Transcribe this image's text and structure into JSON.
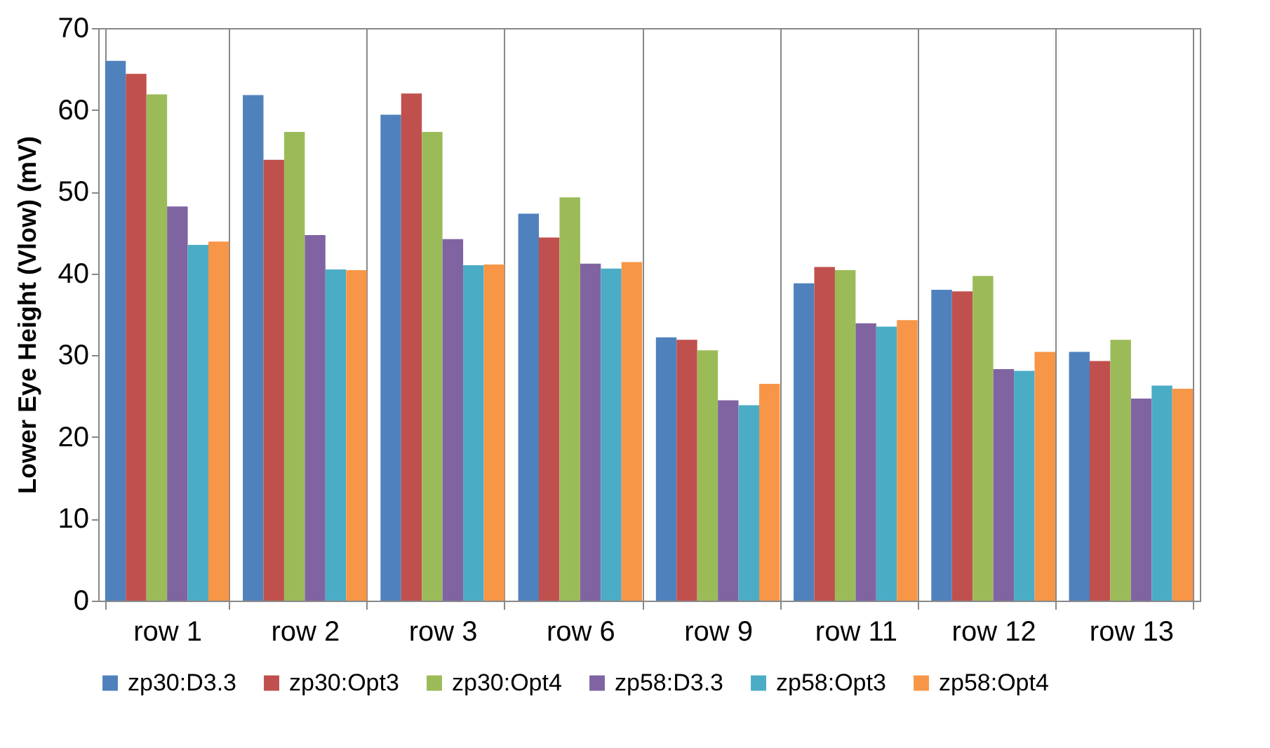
{
  "chart_data": {
    "type": "bar",
    "ylabel": "Lower Eye Height (Vlow) (mV)",
    "categories": [
      "row 1",
      "row 2",
      "row 3",
      "row 6",
      "row 9",
      "row 11",
      "row 12",
      "row 13"
    ],
    "series": [
      {
        "name": "zp30:D3.3",
        "color": "#4f81bd",
        "values": [
          66,
          61.8,
          59.4,
          47.3,
          32.2,
          38.8,
          38,
          30.4
        ]
      },
      {
        "name": "zp30:Opt3",
        "color": "#c0504d",
        "values": [
          64.4,
          53.9,
          62,
          44.4,
          31.9,
          40.8,
          37.8,
          29.3
        ]
      },
      {
        "name": "zp30:Opt4",
        "color": "#9bbb59",
        "values": [
          61.9,
          57.3,
          57.3,
          49.3,
          30.6,
          40.4,
          39.7,
          31.9
        ]
      },
      {
        "name": "zp58:D3.3",
        "color": "#8064a2",
        "values": [
          48.2,
          44.7,
          44.2,
          41.2,
          24.5,
          33.9,
          28.3,
          24.7
        ]
      },
      {
        "name": "zp58:Opt3",
        "color": "#4bacc6",
        "values": [
          43.5,
          40.5,
          41,
          40.6,
          23.9,
          33.5,
          28.1,
          26.3
        ]
      },
      {
        "name": "zp58:Opt4",
        "color": "#f79646",
        "values": [
          43.9,
          40.4,
          41.1,
          41.4,
          26.5,
          34.3,
          30.4,
          25.9
        ]
      }
    ],
    "ylim": [
      0,
      70
    ],
    "yticks": [
      0,
      10,
      20,
      30,
      40,
      50,
      60,
      70
    ],
    "grid": "x",
    "legend": "bottom"
  }
}
